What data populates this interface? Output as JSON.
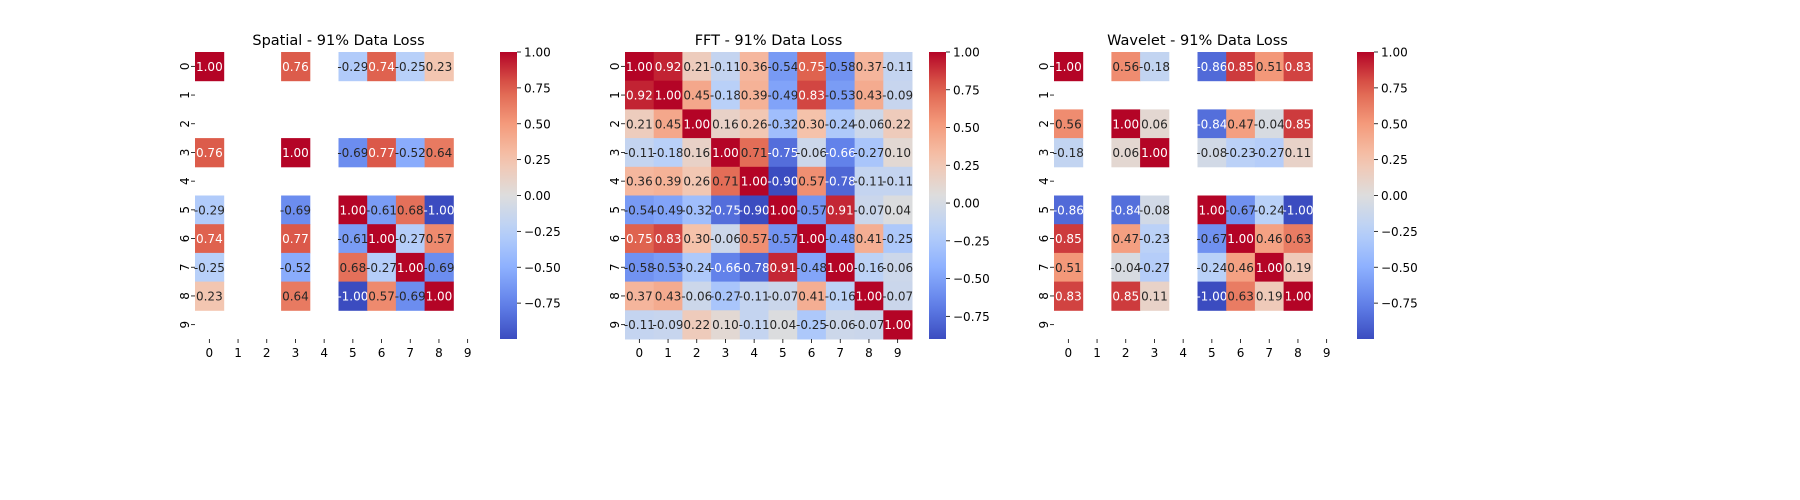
{
  "chart_data": [
    {
      "type": "heatmap",
      "title": "Spatial - 91% Data Loss",
      "x_labels": [
        "0",
        "1",
        "2",
        "3",
        "4",
        "5",
        "6",
        "7",
        "8",
        "9"
      ],
      "y_labels": [
        "0",
        "1",
        "2",
        "3",
        "4",
        "5",
        "6",
        "7",
        "8",
        "9"
      ],
      "colormap": "coolwarm",
      "colorbar_ticks": [
        "1.00",
        "0.75",
        "0.50",
        "0.25",
        "0.00",
        "−0.25",
        "−0.50",
        "−0.75"
      ],
      "vmin": -1.0,
      "vmax": 1.0,
      "cells": [
        [
          1.0,
          null,
          null,
          0.76,
          null,
          -0.29,
          0.74,
          -0.25,
          0.23,
          null
        ],
        [
          null,
          null,
          null,
          null,
          null,
          null,
          null,
          null,
          null,
          null
        ],
        [
          null,
          null,
          null,
          null,
          null,
          null,
          null,
          null,
          null,
          null
        ],
        [
          0.76,
          null,
          null,
          1.0,
          null,
          -0.69,
          0.77,
          -0.52,
          0.64,
          null
        ],
        [
          null,
          null,
          null,
          null,
          null,
          null,
          null,
          null,
          null,
          null
        ],
        [
          -0.29,
          null,
          null,
          -0.69,
          null,
          1.0,
          -0.61,
          0.68,
          -1.0,
          null
        ],
        [
          0.74,
          null,
          null,
          0.77,
          null,
          -0.61,
          1.0,
          -0.27,
          0.57,
          null
        ],
        [
          -0.25,
          null,
          null,
          -0.52,
          null,
          0.68,
          -0.27,
          1.0,
          -0.69,
          null
        ],
        [
          0.23,
          null,
          null,
          0.64,
          null,
          -1.0,
          0.57,
          -0.69,
          1.0,
          null
        ],
        [
          null,
          null,
          null,
          null,
          null,
          null,
          null,
          null,
          null,
          null
        ]
      ]
    },
    {
      "type": "heatmap",
      "title": "FFT - 91% Data Loss",
      "x_labels": [
        "0",
        "1",
        "2",
        "3",
        "4",
        "5",
        "6",
        "7",
        "8",
        "9"
      ],
      "y_labels": [
        "0",
        "1",
        "2",
        "3",
        "4",
        "5",
        "6",
        "7",
        "8",
        "9"
      ],
      "colormap": "coolwarm",
      "colorbar_ticks": [
        "1.00",
        "0.75",
        "0.50",
        "0.25",
        "0.00",
        "−0.25",
        "−0.50",
        "−0.75"
      ],
      "vmin": -0.9,
      "vmax": 1.0,
      "cells": [
        [
          1.0,
          0.92,
          0.21,
          -0.11,
          0.36,
          -0.54,
          0.75,
          -0.58,
          0.37,
          -0.11
        ],
        [
          0.92,
          1.0,
          0.45,
          -0.18,
          0.39,
          -0.49,
          0.83,
          -0.53,
          0.43,
          -0.09
        ],
        [
          0.21,
          0.45,
          1.0,
          0.16,
          0.26,
          -0.32,
          0.3,
          -0.24,
          -0.06,
          0.22
        ],
        [
          -0.11,
          -0.18,
          0.16,
          1.0,
          0.71,
          -0.75,
          -0.06,
          -0.66,
          -0.27,
          0.1
        ],
        [
          0.36,
          0.39,
          0.26,
          0.71,
          1.0,
          -0.9,
          0.57,
          -0.78,
          -0.11,
          -0.11
        ],
        [
          -0.54,
          -0.49,
          -0.32,
          -0.75,
          -0.9,
          1.0,
          -0.57,
          0.91,
          -0.07,
          0.04
        ],
        [
          0.75,
          0.83,
          0.3,
          -0.06,
          0.57,
          -0.57,
          1.0,
          -0.48,
          0.41,
          -0.25
        ],
        [
          -0.58,
          -0.53,
          -0.24,
          -0.66,
          -0.78,
          0.91,
          -0.48,
          1.0,
          -0.16,
          -0.06
        ],
        [
          0.37,
          0.43,
          -0.06,
          -0.27,
          -0.11,
          -0.07,
          0.41,
          -0.16,
          1.0,
          -0.07
        ],
        [
          -0.11,
          -0.09,
          0.22,
          0.1,
          -0.11,
          0.04,
          -0.25,
          -0.06,
          -0.07,
          1.0
        ]
      ]
    },
    {
      "type": "heatmap",
      "title": "Wavelet - 91% Data Loss",
      "x_labels": [
        "0",
        "1",
        "2",
        "3",
        "4",
        "5",
        "6",
        "7",
        "8",
        "9"
      ],
      "y_labels": [
        "0",
        "1",
        "2",
        "3",
        "4",
        "5",
        "6",
        "7",
        "8",
        "9"
      ],
      "colormap": "coolwarm",
      "colorbar_ticks": [
        "1.00",
        "0.75",
        "0.50",
        "0.25",
        "0.00",
        "−0.25",
        "−0.50",
        "−0.75"
      ],
      "vmin": -1.0,
      "vmax": 1.0,
      "cells": [
        [
          1.0,
          null,
          0.56,
          -0.18,
          null,
          -0.86,
          0.85,
          0.51,
          0.83,
          null
        ],
        [
          null,
          null,
          null,
          null,
          null,
          null,
          null,
          null,
          null,
          null
        ],
        [
          0.56,
          null,
          1.0,
          0.06,
          null,
          -0.84,
          0.47,
          -0.04,
          0.85,
          null
        ],
        [
          -0.18,
          null,
          0.06,
          1.0,
          null,
          -0.08,
          -0.23,
          -0.27,
          0.11,
          null
        ],
        [
          null,
          null,
          null,
          null,
          null,
          null,
          null,
          null,
          null,
          null
        ],
        [
          -0.86,
          null,
          -0.84,
          -0.08,
          null,
          1.0,
          -0.67,
          -0.24,
          -1.0,
          null
        ],
        [
          0.85,
          null,
          0.47,
          -0.23,
          null,
          -0.67,
          1.0,
          0.46,
          0.63,
          null
        ],
        [
          0.51,
          null,
          -0.04,
          -0.27,
          null,
          -0.24,
          0.46,
          1.0,
          0.19,
          null
        ],
        [
          0.83,
          null,
          0.85,
          0.11,
          null,
          -1.0,
          0.63,
          0.19,
          1.0,
          null
        ],
        [
          null,
          null,
          null,
          null,
          null,
          null,
          null,
          null,
          null,
          null
        ]
      ]
    }
  ]
}
